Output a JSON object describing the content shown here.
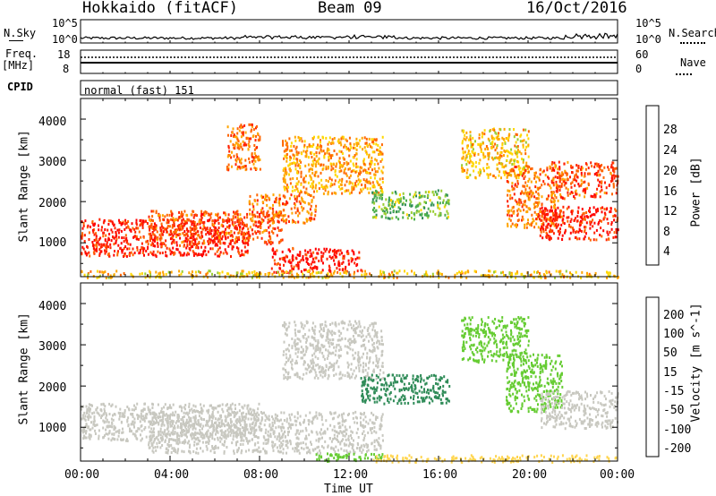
{
  "header": {
    "site": "Hokkaido (fitACF)",
    "beam": "Beam 09",
    "date": "16/Oct/2016"
  },
  "noise_panel": {
    "left_label": "N.Sky",
    "right_label": "N.Search",
    "left_ticks": [
      "10^5",
      "10^0"
    ],
    "right_ticks": [
      "10^5",
      "10^0"
    ]
  },
  "freq_panel": {
    "left_label_1": "Freq.",
    "left_label_2": "[MHz]",
    "left_ticks": [
      "18",
      "8"
    ],
    "right_label": "Nave",
    "right_ticks": [
      "60",
      "0"
    ]
  },
  "cpid_panel": {
    "label": "CPID",
    "text": "normal (fast) 151"
  },
  "power_panel": {
    "ylabel": "Slant Range [km]",
    "yticks": [
      "4000",
      "3000",
      "2000",
      "1000"
    ],
    "colorbar_label": "Power [dB]",
    "colorbar_ticks": [
      "28",
      "24",
      "20",
      "16",
      "12",
      "8",
      "4"
    ],
    "colors": [
      "#0000ff",
      "#2255cc",
      "#2e8b57",
      "#4caf50",
      "#9acd32",
      "#ffd700",
      "#ffa500",
      "#ff6600",
      "#ff2200",
      "#ff0000"
    ]
  },
  "velocity_panel": {
    "ylabel": "Slant Range [km]",
    "yticks": [
      "4000",
      "3000",
      "2000",
      "1000"
    ],
    "colorbar_label": "Velocity [m s^-1]",
    "colorbar_ticks": [
      "200",
      "100",
      "50",
      "15",
      "-15",
      "-50",
      "-100",
      "-200"
    ],
    "colors": [
      "#1a3fbf",
      "#2a6f9f",
      "#2e8b57",
      "#66cc33",
      "#c8c8c0",
      "#ffd54f",
      "#ff9900",
      "#ff5500",
      "#ff0000"
    ]
  },
  "xaxis": {
    "ticks": [
      "00:00",
      "04:00",
      "08:00",
      "12:00",
      "16:00",
      "20:00",
      "00:00"
    ],
    "label": "Time UT"
  },
  "chart_data": {
    "type": "heatmap",
    "x_range_hours": [
      0,
      24
    ],
    "y_range_km": [
      180,
      4500
    ],
    "power_db_range": [
      0,
      30
    ],
    "velocity_range_ms": [
      -250,
      250
    ],
    "power_regions": [
      {
        "t0": 0.0,
        "t1": 7.5,
        "r0": 700,
        "r1": 1600,
        "p": 26
      },
      {
        "t0": 3.0,
        "t1": 9.0,
        "r0": 1000,
        "r1": 1800,
        "p": 24
      },
      {
        "t0": 7.5,
        "t1": 10.5,
        "r0": 1500,
        "r1": 2200,
        "p": 22
      },
      {
        "t0": 8.5,
        "t1": 12.5,
        "r0": 300,
        "r1": 900,
        "p": 27
      },
      {
        "t0": 6.5,
        "t1": 8.0,
        "r0": 2800,
        "r1": 3900,
        "p": 22
      },
      {
        "t0": 9.0,
        "t1": 13.5,
        "r0": 2200,
        "r1": 3600,
        "p": 20
      },
      {
        "t0": 13.0,
        "t1": 16.5,
        "r0": 1600,
        "r1": 2300,
        "p": 12
      },
      {
        "t0": 17.0,
        "t1": 20.0,
        "r0": 2600,
        "r1": 3800,
        "p": 18
      },
      {
        "t0": 19.0,
        "t1": 21.5,
        "r0": 1400,
        "r1": 2900,
        "p": 22
      },
      {
        "t0": 20.5,
        "t1": 24.0,
        "r0": 1100,
        "r1": 1900,
        "p": 26
      },
      {
        "t0": 21.0,
        "t1": 24.0,
        "r0": 2100,
        "r1": 3000,
        "p": 24
      },
      {
        "t0": 0.0,
        "t1": 24.0,
        "r0": 180,
        "r1": 350,
        "p": 18
      }
    ],
    "velocity_regions": [
      {
        "t0": 0.0,
        "t1": 8.0,
        "r0": 700,
        "r1": 1600,
        "v": 0
      },
      {
        "t0": 3.0,
        "t1": 13.5,
        "r0": 400,
        "r1": 1400,
        "v": 0
      },
      {
        "t0": 9.0,
        "t1": 13.5,
        "r0": 2200,
        "r1": 3600,
        "v": 0
      },
      {
        "t0": 12.5,
        "t1": 16.5,
        "r0": 1600,
        "r1": 2300,
        "v": 80
      },
      {
        "t0": 10.5,
        "t1": 13.5,
        "r0": 200,
        "r1": 400,
        "v": 40
      },
      {
        "t0": 17.0,
        "t1": 20.0,
        "r0": 2600,
        "r1": 3700,
        "v": 30
      },
      {
        "t0": 19.0,
        "t1": 21.5,
        "r0": 1400,
        "r1": 2800,
        "v": 30
      },
      {
        "t0": 20.5,
        "t1": 24.0,
        "r0": 1000,
        "r1": 1900,
        "v": 0
      },
      {
        "t0": 13.0,
        "t1": 24.0,
        "r0": 180,
        "r1": 350,
        "v": -40
      }
    ]
  }
}
